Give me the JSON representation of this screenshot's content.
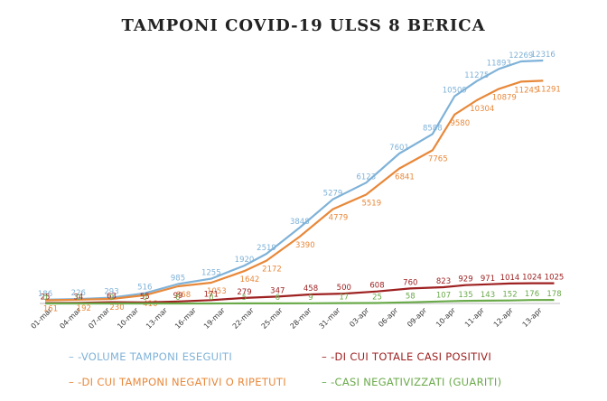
{
  "chart_data": {
    "type": "line",
    "title": "TAMPONI COVID-19 ULSS 8 BERICA",
    "xlabel": "",
    "ylabel": "",
    "ylim": [
      0,
      12500
    ],
    "grid": false,
    "legend_position": "bottom",
    "x_ticks": [
      "01-mar",
      "04-mar",
      "07-mar",
      "10-mar",
      "13-mar",
      "16-mar",
      "19-mar",
      "22-mar",
      "25-mar",
      "28-mar",
      "31-mar",
      "03-apr",
      "06-apr",
      "09-apr",
      "10-apr",
      "11-apr",
      "12-apr",
      "13-apr"
    ],
    "x_days": [
      0,
      3,
      6,
      9,
      12,
      15,
      18,
      21,
      24,
      27,
      30,
      33,
      36,
      39,
      40,
      41,
      42,
      43
    ],
    "series": [
      {
        "name": "-VOLUME TAMPONI ESEGUITI",
        "color": "#7fb2d8",
        "points": [
          [
            0,
            186
          ],
          [
            3,
            226
          ],
          [
            6,
            293
          ],
          [
            9,
            516
          ],
          [
            12,
            985
          ],
          [
            15,
            1255
          ],
          [
            18,
            1920
          ],
          [
            20,
            2519
          ],
          [
            23,
            3848
          ],
          [
            26,
            5279
          ],
          [
            29,
            6123
          ],
          [
            32,
            7601
          ],
          [
            35,
            8588
          ],
          [
            37,
            10509
          ],
          [
            39,
            11275
          ],
          [
            41,
            11893
          ],
          [
            43,
            12269
          ],
          [
            45,
            12316
          ]
        ],
        "labels": [
          "186",
          "226",
          "293",
          "516",
          "985",
          "1255",
          "1920",
          "2519",
          "3848",
          "5279",
          "6123",
          "7601",
          "8588",
          "10509",
          "11275",
          "11893",
          "12269",
          "12316"
        ]
      },
      {
        "name": "-DI CUI TAMPONI NEGATIVI O RIPETUTI",
        "color": "#e8883a",
        "points": [
          [
            0,
            161
          ],
          [
            3,
            192
          ],
          [
            6,
            230
          ],
          [
            9,
            416
          ],
          [
            12,
            868
          ],
          [
            15,
            1053
          ],
          [
            18,
            1642
          ],
          [
            20,
            2172
          ],
          [
            23,
            3390
          ],
          [
            26,
            4779
          ],
          [
            29,
            5519
          ],
          [
            32,
            6841
          ],
          [
            35,
            7765
          ],
          [
            37,
            9580
          ],
          [
            39,
            10304
          ],
          [
            41,
            10879
          ],
          [
            43,
            11245
          ],
          [
            45,
            11291
          ]
        ],
        "labels": [
          "161",
          "192",
          "230",
          "416",
          "868",
          "1053",
          "1642",
          "2172",
          "3390",
          "4779",
          "5519",
          "6841",
          "7765",
          "9580",
          "10304",
          "10879",
          "11245",
          "11291"
        ]
      },
      {
        "name": "-DI CUI TOTALE CASI POSITIVI",
        "color": "#9e2020",
        "points": [
          [
            0,
            25
          ],
          [
            3,
            34
          ],
          [
            6,
            63
          ],
          [
            9,
            55
          ],
          [
            12,
            99
          ],
          [
            15,
            171
          ],
          [
            18,
            279
          ],
          [
            21,
            347
          ],
          [
            24,
            458
          ],
          [
            27,
            500
          ],
          [
            30,
            608
          ],
          [
            33,
            760
          ],
          [
            36,
            823
          ],
          [
            38,
            929
          ],
          [
            40,
            971
          ],
          [
            42,
            1014
          ],
          [
            44,
            1024
          ],
          [
            46,
            1025
          ]
        ],
        "labels": [
          "25",
          "34",
          "63",
          "55",
          "99",
          "171",
          "279",
          "347",
          "458",
          "500",
          "608",
          "760",
          "823",
          "929",
          "971",
          "1014",
          "1024",
          "1025"
        ]
      },
      {
        "name": "-CASI NEGATIVIZZATI (GUARITI)",
        "color": "#6aaa4a",
        "points": [
          [
            0,
            0
          ],
          [
            3,
            0
          ],
          [
            6,
            0
          ],
          [
            9,
            0
          ],
          [
            12,
            0
          ],
          [
            15,
            0
          ],
          [
            18,
            5
          ],
          [
            21,
            6
          ],
          [
            24,
            9
          ],
          [
            27,
            17
          ],
          [
            30,
            25
          ],
          [
            33,
            58
          ],
          [
            36,
            107
          ],
          [
            38,
            135
          ],
          [
            40,
            143
          ],
          [
            42,
            152
          ],
          [
            44,
            176
          ],
          [
            46,
            178
          ]
        ],
        "labels": [
          "0",
          "0",
          "0",
          "0",
          "0",
          "0",
          "5",
          "6",
          "9",
          "17",
          "25",
          "58",
          "107",
          "135",
          "143",
          "152",
          "176",
          "178"
        ]
      }
    ]
  }
}
